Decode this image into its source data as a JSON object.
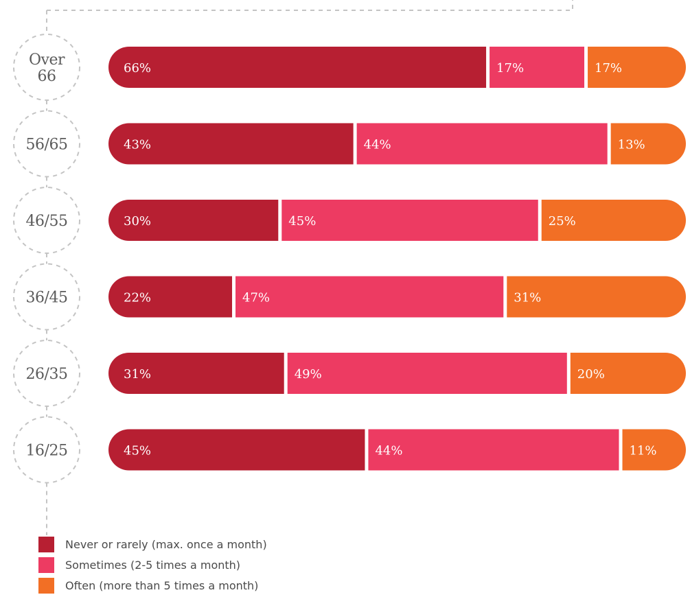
{
  "chart_data": {
    "type": "bar",
    "orientation": "horizontal",
    "stacked": true,
    "categories": [
      "Over 66",
      "56/65",
      "46/55",
      "36/45",
      "26/35",
      "16/25"
    ],
    "category_lines": [
      [
        "Over",
        "66"
      ],
      [
        "56/65"
      ],
      [
        "46/55"
      ],
      [
        "36/45"
      ],
      [
        "26/35"
      ],
      [
        "16/25"
      ]
    ],
    "series": [
      {
        "name": "Never or rarely (max. once a month)",
        "color": "#b71f32",
        "values": [
          66,
          43,
          30,
          22,
          31,
          45
        ]
      },
      {
        "name": "Sometimes (2-5 times a month)",
        "color": "#ed3b62",
        "values": [
          17,
          44,
          45,
          47,
          49,
          44
        ]
      },
      {
        "name": "Often (more than 5 times a month)",
        "color": "#f26f25",
        "values": [
          17,
          13,
          25,
          31,
          20,
          11
        ]
      }
    ],
    "value_suffix": "%",
    "legend_position": "bottom-left",
    "grid": false
  }
}
